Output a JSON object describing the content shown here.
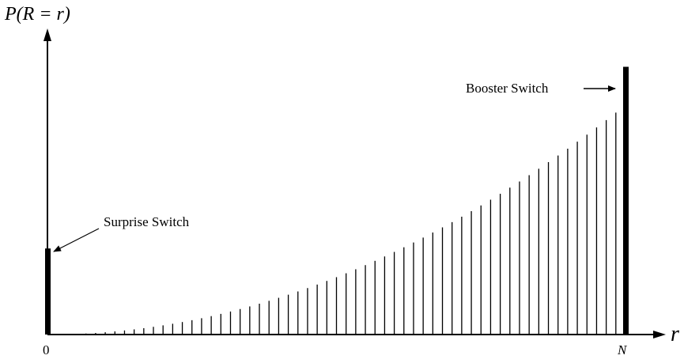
{
  "chart_data": {
    "type": "bar",
    "ylabel": "P(R = r)",
    "xlabel": "r",
    "x_tick_labels": [
      "0",
      "N"
    ],
    "x_range": [
      0,
      60
    ],
    "y_range": [
      0,
      1
    ],
    "grid": false,
    "legend": "none",
    "special_bars": [
      {
        "x": 0,
        "value": 0.27,
        "label": "Surprise Switch"
      },
      {
        "x": 60,
        "value": 0.84,
        "label": "Booster Switch"
      }
    ],
    "stem_x": [
      1,
      2,
      3,
      4,
      5,
      6,
      7,
      8,
      9,
      10,
      11,
      12,
      13,
      14,
      15,
      16,
      17,
      18,
      19,
      20,
      21,
      22,
      23,
      24,
      25,
      26,
      27,
      28,
      29,
      30,
      31,
      32,
      33,
      34,
      35,
      36,
      37,
      38,
      39,
      40,
      41,
      42,
      43,
      44,
      45,
      46,
      47,
      48,
      49,
      50,
      51,
      52,
      53,
      54,
      55,
      56,
      57,
      58,
      59
    ],
    "stem_values": [
      0.0002,
      0.0008,
      0.0018,
      0.0032,
      0.005,
      0.0072,
      0.0098,
      0.0128,
      0.0162,
      0.02,
      0.0242,
      0.0288,
      0.0338,
      0.0392,
      0.045,
      0.0512,
      0.0578,
      0.0648,
      0.0722,
      0.08,
      0.0882,
      0.0968,
      0.1058,
      0.1152,
      0.125,
      0.1352,
      0.1458,
      0.1568,
      0.1682,
      0.18,
      0.1922,
      0.2048,
      0.2178,
      0.2312,
      0.245,
      0.2592,
      0.2738,
      0.2888,
      0.3042,
      0.32,
      0.3362,
      0.3528,
      0.3698,
      0.3872,
      0.405,
      0.4232,
      0.4418,
      0.4608,
      0.4802,
      0.5,
      0.5202,
      0.5408,
      0.5618,
      0.5832,
      0.605,
      0.6272,
      0.6498,
      0.6728,
      0.6962
    ],
    "colors": {
      "ink": "#000000",
      "background": "#ffffff"
    }
  }
}
